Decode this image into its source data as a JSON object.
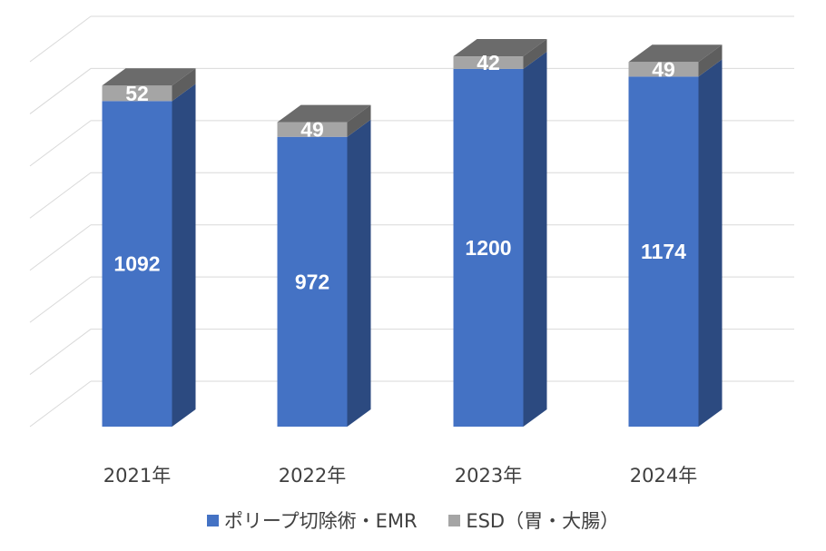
{
  "chart_data": {
    "type": "bar",
    "stacked": true,
    "three_d": true,
    "categories": [
      "2021年",
      "2022年",
      "2023年",
      "2024年"
    ],
    "series": [
      {
        "name": "ポリープ切除術・EMR",
        "values": [
          1092,
          972,
          1200,
          1174
        ],
        "color": "#4472C4"
      },
      {
        "name": "ESD（胃・大腸）",
        "values": [
          52,
          49,
          42,
          49
        ],
        "color": "#A5A5A5"
      }
    ],
    "title": "",
    "xlabel": "",
    "ylabel": "",
    "ylim": [
      0,
      1400
    ],
    "grid": true,
    "legend_position": "bottom",
    "data_labels": true
  }
}
